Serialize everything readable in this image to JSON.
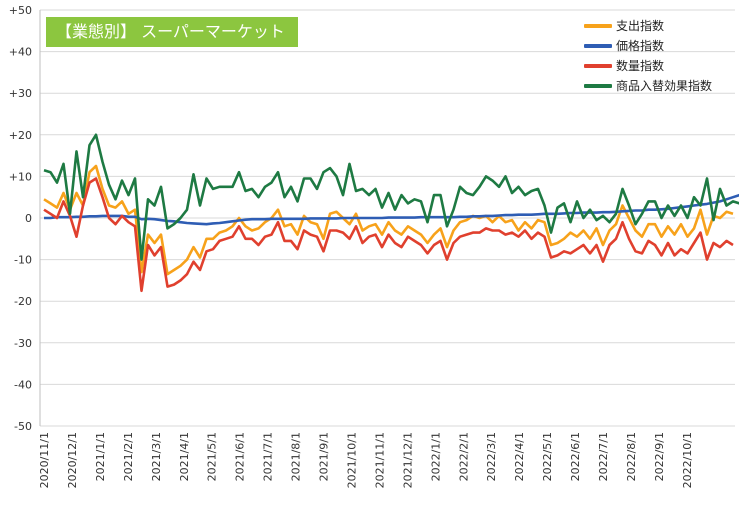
{
  "chart_data": {
    "type": "line",
    "title": "【業態別】 スーパーマーケット",
    "xlabel": "",
    "ylabel": "",
    "ylim": [
      -50,
      50
    ],
    "yticks": [
      50,
      40,
      30,
      20,
      10,
      0,
      -10,
      -20,
      -30,
      -40,
      -50
    ],
    "ytick_labels": [
      "+50",
      "+40",
      "+30",
      "+20",
      "+10",
      "0",
      "-10",
      "-20",
      "-30",
      "-40",
      "-50"
    ],
    "grid": "horizontal",
    "legend_position": "top-right",
    "xtick_labels": [
      "2020/11/1",
      "2020/12/1",
      "2021/1/1",
      "2021/2/1",
      "2021/3/1",
      "2021/4/1",
      "2021/5/1",
      "2021/6/1",
      "2021/7/1",
      "2021/8/1",
      "2021/9/1",
      "2021/10/1",
      "2021/11/1",
      "2021/12/1",
      "2022/1/1",
      "2022/2/1",
      "2022/3/1",
      "2022/4/1",
      "2022/5/1",
      "2022/6/1",
      "2022/7/1",
      "2022/8/1",
      "2022/9/1",
      "2022/10/1"
    ],
    "weeks_per_tick": 4.3,
    "series": [
      {
        "name": "支出指数",
        "color": "#f7a21b",
        "values": [
          4.5,
          3.5,
          2.5,
          6.0,
          2.0,
          6.0,
          3.0,
          11.0,
          12.5,
          7.0,
          3.0,
          2.5,
          4.0,
          1.0,
          2.0,
          -13.0,
          -4.0,
          -6.0,
          -4.0,
          -13.5,
          -12.5,
          -11.5,
          -10.0,
          -7.0,
          -9.5,
          -5.0,
          -5.0,
          -3.5,
          -3.0,
          -2.0,
          0.0,
          -2.0,
          -3.0,
          -2.5,
          -1.0,
          0.0,
          2.0,
          -2.0,
          -1.5,
          -4.0,
          0.5,
          -1.0,
          -1.5,
          -5.0,
          1.0,
          1.5,
          0.0,
          -1.5,
          1.0,
          -3.0,
          -2.0,
          -1.5,
          -4.0,
          -1.0,
          -3.0,
          -4.0,
          -2.0,
          -3.0,
          -4.0,
          -6.0,
          -4.0,
          -2.5,
          -7.0,
          -3.0,
          -1.0,
          -0.5,
          0.5,
          0.0,
          0.5,
          -1.0,
          0.5,
          -1.0,
          -0.5,
          -3.0,
          -1.0,
          -2.5,
          -0.5,
          -1.0,
          -6.5,
          -6.0,
          -5.0,
          -3.5,
          -4.5,
          -3.0,
          -5.0,
          -2.5,
          -6.5,
          -3.0,
          -1.5,
          3.0,
          0.0,
          -3.0,
          -4.5,
          -1.5,
          -1.5,
          -4.5,
          -2.0,
          -4.0,
          -1.5,
          -4.5,
          -2.5,
          2.0,
          -4.0,
          0.5,
          0.0,
          1.5,
          1.0
        ],
        "data_name": "series-line-spending"
      },
      {
        "name": "価格指数",
        "color": "#2e5db4",
        "values": [
          0.0,
          0.0,
          0.2,
          0.2,
          0.2,
          0.3,
          0.3,
          0.4,
          0.4,
          0.5,
          0.5,
          0.5,
          0.5,
          0.3,
          0.3,
          -0.3,
          -0.2,
          -0.3,
          -0.5,
          -0.7,
          -0.8,
          -1.0,
          -1.2,
          -1.3,
          -1.4,
          -1.5,
          -1.3,
          -1.2,
          -1.0,
          -0.8,
          -0.6,
          -0.4,
          -0.3,
          -0.3,
          -0.3,
          -0.2,
          -0.2,
          -0.2,
          -0.2,
          -0.2,
          -0.2,
          -0.1,
          -0.1,
          -0.1,
          -0.1,
          -0.1,
          0.0,
          0.0,
          0.0,
          0.0,
          0.0,
          0.0,
          0.0,
          0.1,
          0.1,
          0.1,
          0.1,
          0.1,
          0.2,
          0.2,
          0.2,
          0.2,
          0.2,
          0.2,
          0.3,
          0.3,
          0.4,
          0.4,
          0.5,
          0.5,
          0.6,
          0.7,
          0.7,
          0.8,
          0.8,
          0.8,
          0.9,
          1.0,
          1.0,
          1.0,
          1.1,
          1.2,
          1.2,
          1.3,
          1.3,
          1.3,
          1.4,
          1.4,
          1.5,
          1.6,
          1.7,
          1.8,
          1.8,
          2.0,
          2.0,
          2.1,
          2.2,
          2.4,
          2.6,
          2.8,
          3.0,
          3.2,
          3.4,
          3.7,
          4.0,
          4.5,
          5.0,
          5.5
        ],
        "data_name": "series-line-price"
      },
      {
        "name": "数量指数",
        "color": "#e0402e",
        "values": [
          2.0,
          1.0,
          0.0,
          4.0,
          0.5,
          -4.5,
          3.0,
          8.5,
          9.5,
          5.0,
          0.0,
          -1.5,
          0.5,
          -1.0,
          -2.0,
          -17.5,
          -6.5,
          -9.0,
          -7.0,
          -16.5,
          -16.0,
          -15.0,
          -13.5,
          -10.5,
          -12.5,
          -8.0,
          -7.5,
          -5.5,
          -5.0,
          -4.5,
          -2.0,
          -5.0,
          -5.0,
          -6.5,
          -4.5,
          -4.0,
          -1.0,
          -5.5,
          -5.5,
          -7.5,
          -3.0,
          -4.0,
          -4.5,
          -8.0,
          -3.0,
          -3.0,
          -3.5,
          -5.0,
          -2.0,
          -6.0,
          -4.5,
          -4.0,
          -7.0,
          -4.0,
          -6.0,
          -7.0,
          -4.5,
          -5.5,
          -6.5,
          -8.5,
          -6.5,
          -5.5,
          -10.0,
          -6.0,
          -4.5,
          -4.0,
          -3.5,
          -3.5,
          -2.5,
          -3.0,
          -3.0,
          -4.0,
          -3.5,
          -4.5,
          -3.0,
          -5.0,
          -3.5,
          -4.5,
          -9.5,
          -9.0,
          -8.0,
          -8.5,
          -7.5,
          -6.5,
          -8.5,
          -6.5,
          -10.5,
          -6.5,
          -5.0,
          -1.0,
          -5.0,
          -8.0,
          -8.5,
          -5.5,
          -6.5,
          -9.0,
          -6.0,
          -9.0,
          -7.5,
          -8.5,
          -6.0,
          -3.5,
          -10.0,
          -6.0,
          -7.0,
          -5.5,
          -6.5
        ],
        "data_name": "series-line-quantity"
      },
      {
        "name": "商品入替効果指数",
        "color": "#1e7a43",
        "values": [
          11.5,
          11.0,
          8.5,
          13.0,
          1.0,
          16.0,
          5.0,
          17.5,
          20.0,
          13.5,
          8.0,
          4.5,
          9.0,
          5.5,
          9.5,
          -10.0,
          4.5,
          3.0,
          7.5,
          -2.5,
          -1.5,
          0.0,
          2.0,
          10.5,
          3.0,
          9.5,
          7.0,
          7.5,
          7.5,
          7.5,
          11.0,
          6.5,
          7.0,
          5.0,
          7.5,
          8.5,
          11.0,
          5.0,
          7.5,
          4.0,
          9.5,
          9.5,
          7.0,
          11.0,
          12.0,
          10.0,
          5.5,
          13.0,
          6.5,
          7.0,
          5.5,
          7.0,
          2.5,
          6.0,
          2.0,
          5.5,
          3.5,
          4.5,
          4.0,
          -1.0,
          5.5,
          5.5,
          -2.0,
          2.0,
          7.5,
          6.0,
          5.5,
          7.5,
          10.0,
          9.0,
          7.5,
          10.0,
          6.0,
          7.5,
          5.5,
          6.5,
          7.0,
          3.0,
          -3.5,
          2.5,
          3.5,
          -1.0,
          4.0,
          0.0,
          2.0,
          -0.5,
          0.5,
          -1.0,
          1.0,
          7.0,
          3.0,
          -1.5,
          1.0,
          4.0,
          4.0,
          0.0,
          3.0,
          0.5,
          3.0,
          0.0,
          5.0,
          3.0,
          9.5,
          -0.5,
          7.0,
          3.0,
          4.0,
          3.5
        ],
        "data_name": "series-line-substitution"
      }
    ]
  }
}
